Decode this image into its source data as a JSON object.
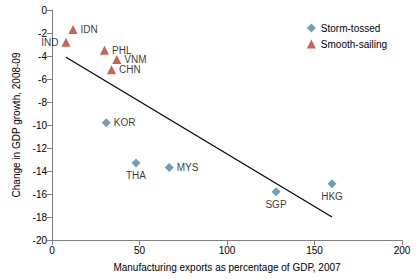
{
  "chart_data": {
    "type": "scatter",
    "x_label": "Manufacturing exports as percentage of GDP, 2007",
    "y_label": "Change in GDP growth, 2008-09",
    "xlim": [
      0,
      200
    ],
    "xticks": [
      0,
      50,
      100,
      150,
      200
    ],
    "ylim": [
      -20,
      0
    ],
    "yticks": [
      -20,
      -18,
      -16,
      -14,
      -12,
      -10,
      -8,
      -6,
      -4,
      -2,
      0
    ],
    "grid": false,
    "legend": "upper right",
    "series": [
      {
        "name": "Storm-tossed",
        "color": "#4f86a8",
        "marker": "diamond",
        "x": [
          31,
          48,
          67,
          128,
          160
        ],
        "values": [
          -9.8,
          -13.3,
          -13.7,
          -15.8,
          -15.1
        ],
        "labels": [
          "KOR",
          "THA",
          "MYS",
          "SGP",
          "HKG"
        ]
      },
      {
        "name": "Smooth-sailing",
        "color": "#c0392b",
        "marker": "triangle",
        "x": [
          12,
          8,
          30,
          37,
          34
        ],
        "values": [
          -1.7,
          -2.8,
          -3.5,
          -4.3,
          -5.2
        ],
        "labels": [
          "IDN",
          "IND",
          "PHL",
          "VNM",
          "CHN"
        ]
      },
      {
        "type": "line",
        "color": "#000000",
        "line_style": "solid",
        "x": [
          8,
          160
        ],
        "values": [
          -4.1,
          -18
        ]
      }
    ]
  }
}
